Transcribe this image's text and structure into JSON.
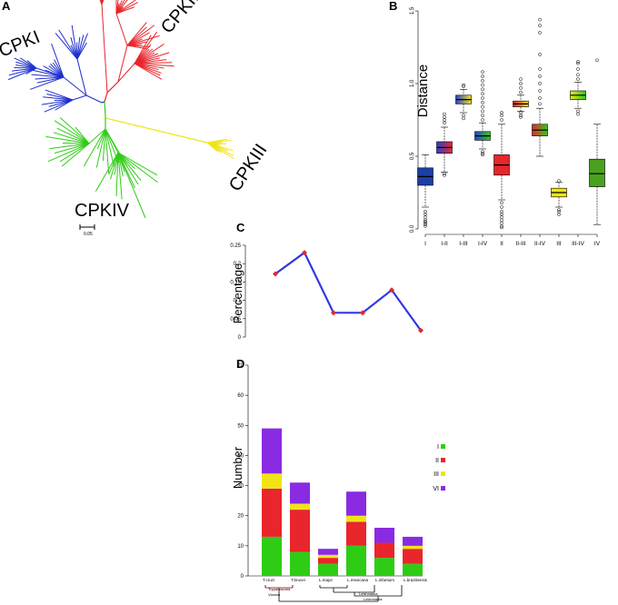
{
  "panels": {
    "a": "A",
    "b": "B",
    "c": "C",
    "d": "D"
  },
  "colors": {
    "red": "#e8262b",
    "blue": "#1f2fd0",
    "green": "#2fcc16",
    "yellow": "#f0e417",
    "purple": "#8a2be2",
    "line": "#2f37e6",
    "point": "#e8262b"
  },
  "tree": {
    "clades": {
      "cpk1": "CPKI",
      "cpk2": "CPKII",
      "cpk3": "CPKIII",
      "cpk4": "CPKIV"
    },
    "scale_label": "0.05"
  },
  "chart_data": [
    {
      "panel": "B",
      "type": "boxplot",
      "ylabel": "Distance",
      "ylim": [
        0,
        1.5
      ],
      "yticks": [
        "0.0",
        "0.5",
        "1.0",
        "1.5"
      ],
      "categories": [
        "I",
        "I-II",
        "I-III",
        "I-IV",
        "II",
        "II-III",
        "II-IV",
        "III",
        "III-IV",
        "IV"
      ],
      "boxes": [
        {
          "q1": 0.3,
          "median": 0.36,
          "q3": 0.42,
          "lo": 0.15,
          "hi": 0.51,
          "colors": [
            "#1a3fa8",
            "#1a3fa8"
          ],
          "outliers": [
            0.12,
            0.1,
            0.08,
            0.06,
            0.05,
            0.04,
            0.03,
            0.02
          ]
        },
        {
          "q1": 0.52,
          "median": 0.56,
          "q3": 0.6,
          "lo": 0.39,
          "hi": 0.7,
          "colors": [
            "#2a3fd0",
            "#e8262b"
          ],
          "outliers": [
            0.73,
            0.75,
            0.77,
            0.79,
            0.38,
            0.37
          ]
        },
        {
          "q1": 0.86,
          "median": 0.89,
          "q3": 0.92,
          "lo": 0.8,
          "hi": 0.96,
          "colors": [
            "#2a3fd0",
            "#f0e417"
          ],
          "outliers": [
            0.78,
            0.76,
            0.98,
            0.99
          ]
        },
        {
          "q1": 0.61,
          "median": 0.64,
          "q3": 0.67,
          "lo": 0.55,
          "hi": 0.73,
          "colors": [
            "#2a3fd0",
            "#2fcc16"
          ],
          "outliers": [
            0.75,
            0.78,
            0.81,
            0.84,
            0.87,
            0.9,
            0.93,
            0.96,
            0.99,
            1.02,
            1.05,
            1.08,
            0.53,
            0.52,
            0.51
          ]
        },
        {
          "q1": 0.37,
          "median": 0.44,
          "q3": 0.51,
          "lo": 0.2,
          "hi": 0.72,
          "colors": [
            "#e8262b",
            "#e8262b"
          ],
          "outliers": [
            0.75,
            0.78,
            0.8,
            0.18,
            0.15,
            0.12,
            0.1,
            0.08,
            0.06,
            0.04,
            0.02,
            0.01
          ]
        },
        {
          "q1": 0.84,
          "median": 0.86,
          "q3": 0.88,
          "lo": 0.81,
          "hi": 0.92,
          "colors": [
            "#e8262b",
            "#f0e417"
          ],
          "outliers": [
            0.8,
            0.78,
            0.77,
            0.94,
            0.97,
            1.0,
            1.03
          ]
        },
        {
          "q1": 0.64,
          "median": 0.68,
          "q3": 0.72,
          "lo": 0.5,
          "hi": 0.83,
          "colors": [
            "#e8262b",
            "#2fcc16"
          ],
          "outliers": [
            0.86,
            0.9,
            0.95,
            1.0,
            1.05,
            1.1,
            1.2,
            1.35,
            1.4,
            1.44
          ]
        },
        {
          "q1": 0.22,
          "median": 0.25,
          "q3": 0.28,
          "lo": 0.15,
          "hi": 0.32,
          "colors": [
            "#f0e417",
            "#f0e417"
          ],
          "outliers": [
            0.13,
            0.12,
            0.1,
            0.33
          ]
        },
        {
          "q1": 0.89,
          "median": 0.92,
          "q3": 0.95,
          "lo": 0.83,
          "hi": 1.01,
          "colors": [
            "#f0e417",
            "#2fcc16"
          ],
          "outliers": [
            0.81,
            0.79,
            1.03,
            1.06,
            1.1,
            1.14,
            1.15
          ]
        },
        {
          "q1": 0.29,
          "median": 0.38,
          "q3": 0.48,
          "lo": 0.03,
          "hi": 0.72,
          "colors": [
            "#4aa020",
            "#4aa020"
          ],
          "outliers": [
            1.16
          ]
        }
      ]
    },
    {
      "panel": "C",
      "type": "line",
      "ylabel": "Percentage",
      "ylim": [
        0,
        0.25
      ],
      "yticks": [
        "0",
        "0.05",
        "0.1",
        "0.15",
        "0.2",
        "0.25"
      ],
      "values": [
        0.172,
        0.23,
        0.066,
        0.066,
        0.128,
        0.018
      ]
    },
    {
      "panel": "D",
      "type": "stacked-bar",
      "ylabel": "Number",
      "ylim": [
        0,
        70
      ],
      "yticks": [
        "0",
        "10",
        "20",
        "30",
        "40",
        "50",
        "60",
        "70"
      ],
      "categories": [
        "T.cruzi",
        "T.brucei",
        "L.major",
        "L.mexicana",
        "L.infantum",
        "L.braziliensis"
      ],
      "legend": [
        "I",
        "II",
        "III",
        "VI"
      ],
      "series": [
        {
          "name": "I",
          "values": [
            13,
            8,
            4,
            10,
            6,
            4
          ]
        },
        {
          "name": "II",
          "values": [
            16,
            14,
            2,
            8,
            5,
            5
          ]
        },
        {
          "name": "III",
          "values": [
            5,
            2,
            1,
            2,
            0,
            1
          ]
        },
        {
          "name": "VI",
          "values": [
            15,
            7,
            2,
            8,
            5,
            3
          ]
        }
      ],
      "taxonomy_labels": [
        "Trypanosoma",
        "Leishmania",
        "Viannia",
        "Leishmania"
      ]
    }
  ]
}
